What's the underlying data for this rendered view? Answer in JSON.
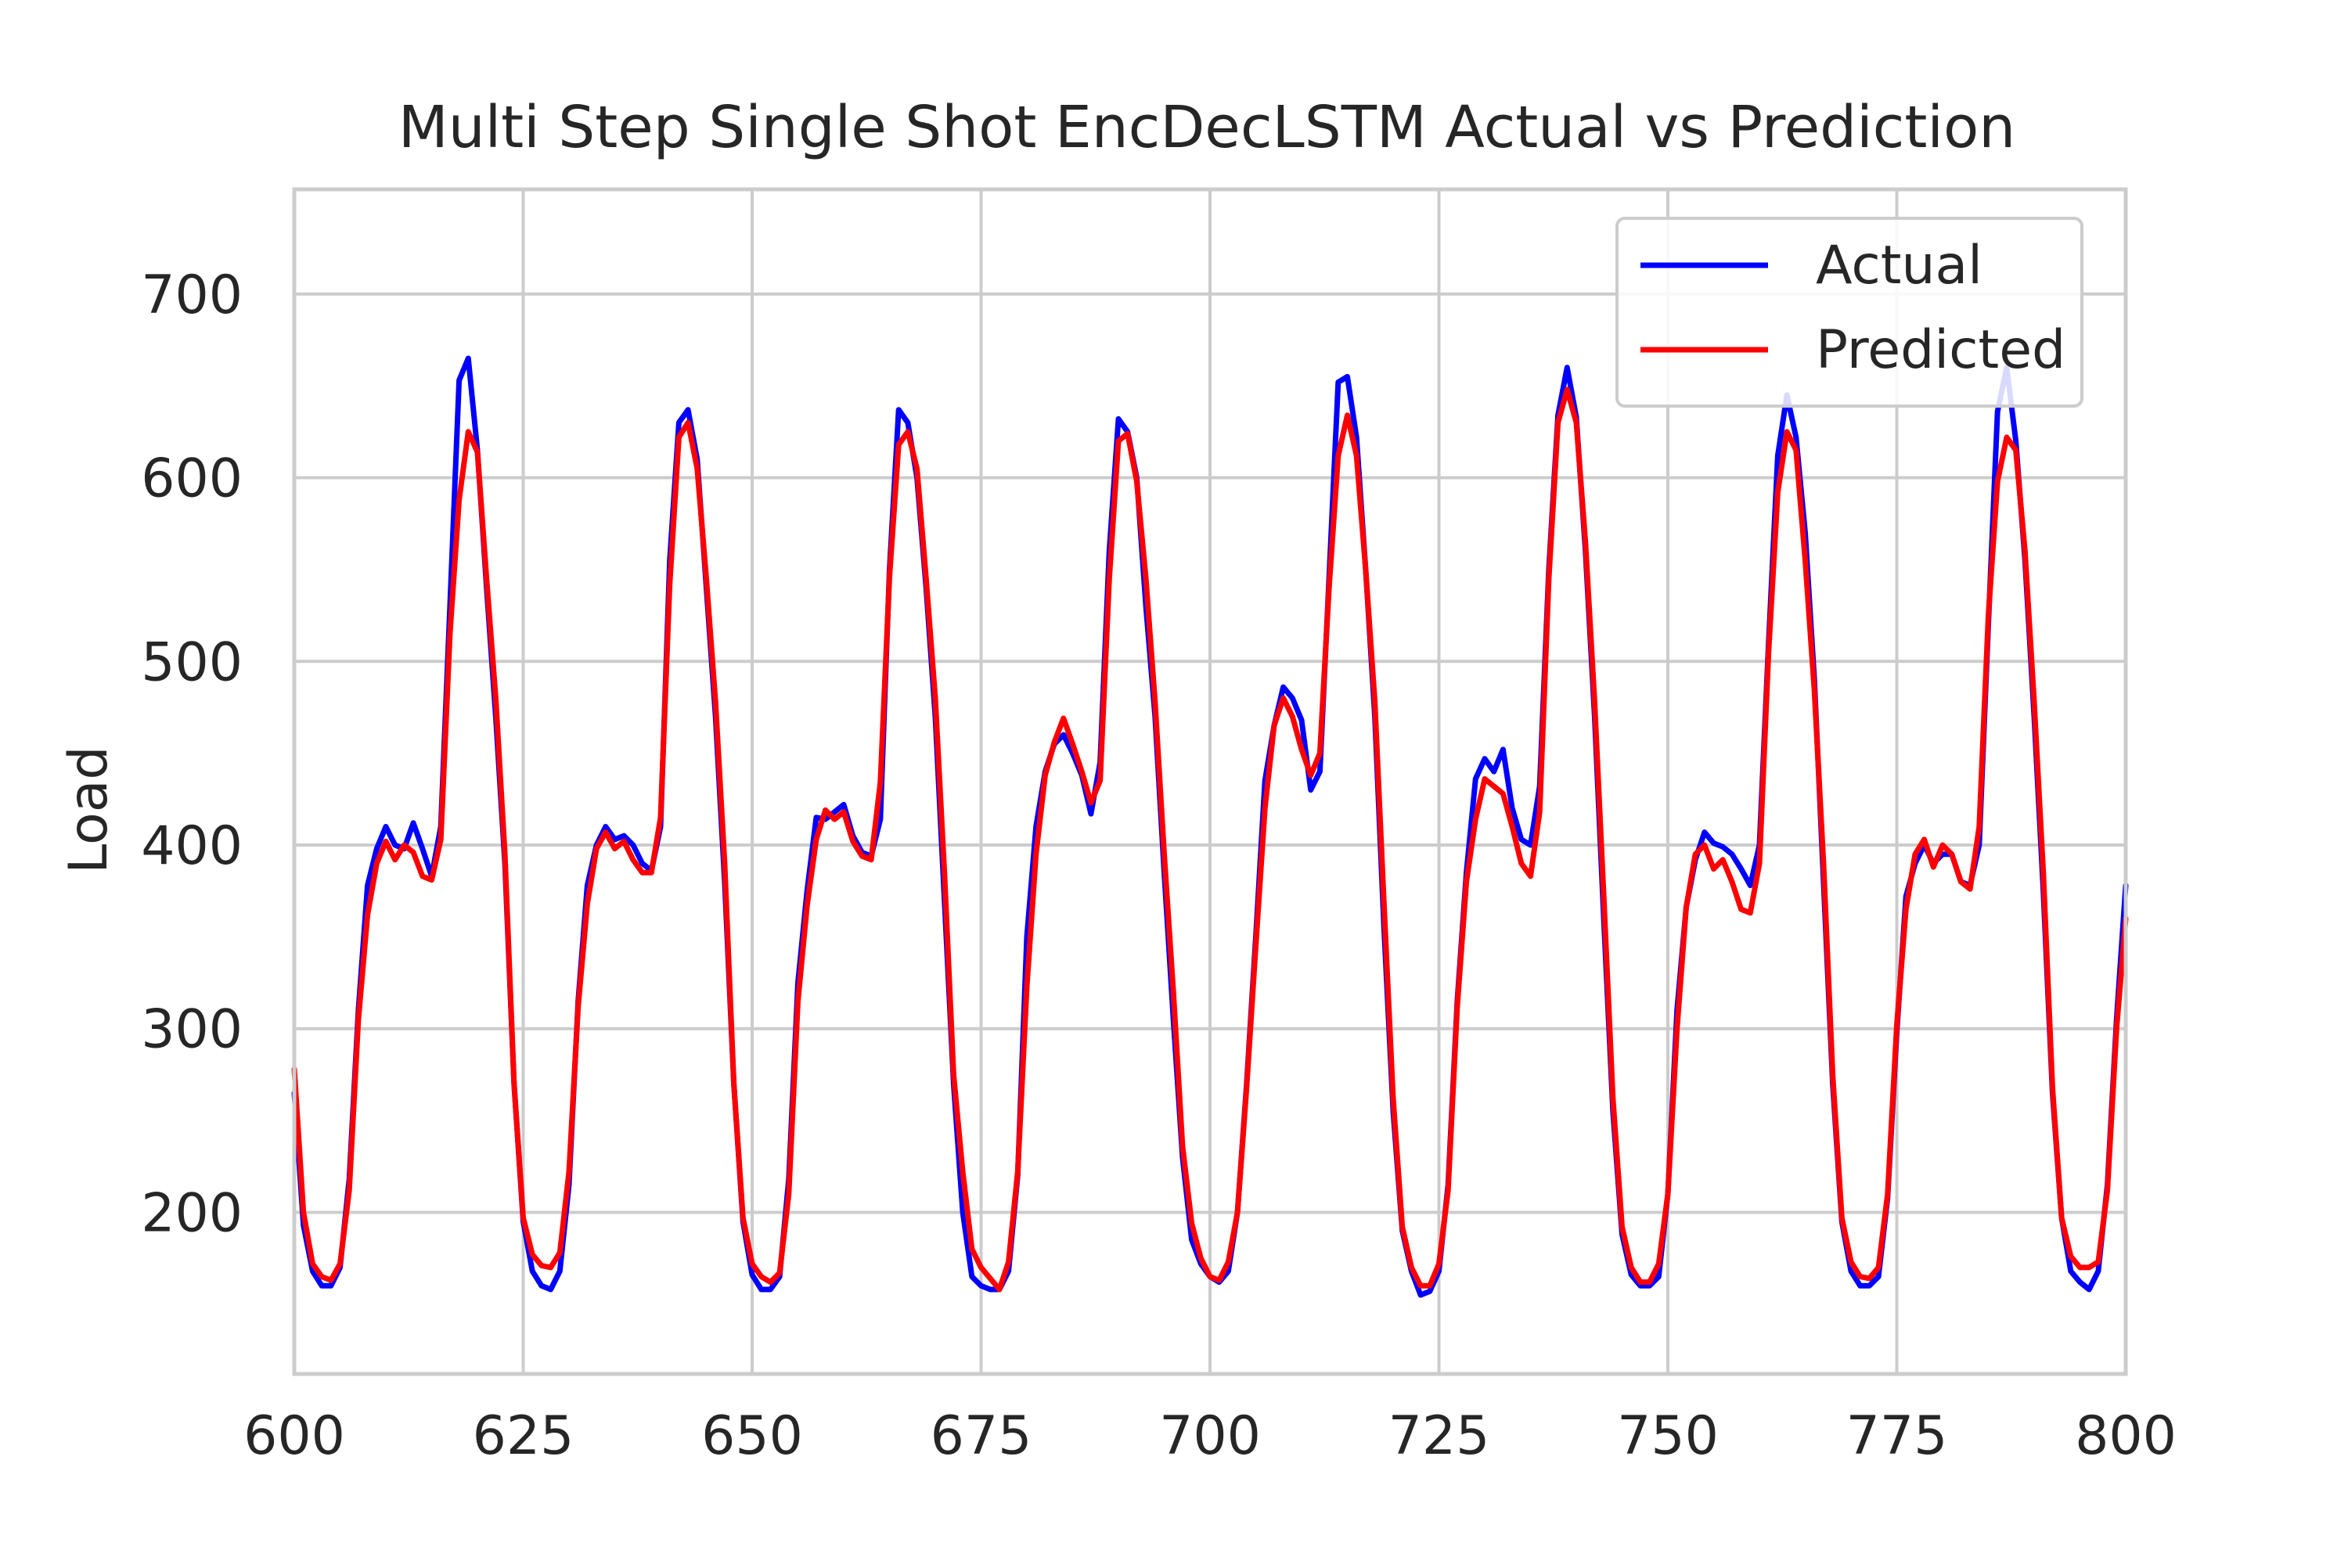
{
  "chart_data": {
    "type": "line",
    "title": "Multi Step Single Shot EncDecLSTM Actual vs Prediction",
    "xlabel": "",
    "ylabel": "Load",
    "xlim": [
      600,
      800
    ],
    "ylim": [
      112,
      757
    ],
    "x_ticks": [
      600,
      625,
      650,
      675,
      700,
      725,
      750,
      775,
      800
    ],
    "y_ticks": [
      200,
      300,
      400,
      500,
      600,
      700
    ],
    "grid": true,
    "legend_position": "top-right",
    "x_start": 600,
    "series": [
      {
        "name": "Actual",
        "color": "#0000ff",
        "values": [
          265,
          193,
          168,
          160,
          160,
          170,
          218,
          310,
          378,
          398,
          410,
          400,
          398,
          412,
          398,
          383,
          410,
          530,
          653,
          665,
          615,
          540,
          470,
          390,
          270,
          195,
          168,
          160,
          158,
          168,
          215,
          315,
          378,
          400,
          410,
          403,
          405,
          400,
          390,
          386,
          410,
          555,
          630,
          637,
          610,
          540,
          470,
          380,
          270,
          195,
          166,
          158,
          158,
          165,
          218,
          325,
          375,
          415,
          414,
          418,
          422,
          405,
          396,
          394,
          414,
          550,
          637,
          630,
          600,
          540,
          470,
          370,
          270,
          200,
          165,
          160,
          158,
          158,
          168,
          220,
          350,
          410,
          440,
          455,
          460,
          450,
          438,
          417,
          445,
          560,
          632,
          625,
          600,
          530,
          470,
          385,
          305,
          230,
          185,
          172,
          165,
          162,
          168,
          200,
          270,
          350,
          435,
          465,
          486,
          480,
          468,
          430,
          440,
          545,
          652,
          655,
          622,
          550,
          470,
          355,
          255,
          190,
          168,
          155,
          157,
          168,
          215,
          315,
          385,
          436,
          447,
          440,
          452,
          420,
          403,
          400,
          432,
          550,
          634,
          660,
          633,
          560,
          470,
          360,
          255,
          188,
          166,
          160,
          160,
          165,
          210,
          310,
          366,
          392,
          407,
          401,
          399,
          395,
          387,
          378,
          400,
          510,
          612,
          645,
          622,
          570,
          490,
          380,
          270,
          195,
          168,
          160,
          160,
          165,
          208,
          298,
          372,
          390,
          400,
          390,
          395,
          395,
          380,
          378,
          400,
          520,
          636,
          660,
          620,
          555,
          470,
          375,
          265,
          197,
          168,
          162,
          158,
          168,
          215,
          305,
          378
        ]
      },
      {
        "name": "Predicted",
        "color": "#ff0000",
        "values": [
          278,
          200,
          172,
          165,
          163,
          172,
          212,
          305,
          362,
          390,
          402,
          392,
          400,
          396,
          383,
          381,
          403,
          515,
          588,
          625,
          614,
          545,
          480,
          395,
          270,
          197,
          177,
          171,
          170,
          178,
          222,
          312,
          368,
          398,
          407,
          398,
          402,
          392,
          385,
          385,
          415,
          542,
          622,
          630,
          605,
          545,
          478,
          390,
          270,
          197,
          172,
          165,
          162,
          167,
          210,
          315,
          367,
          403,
          419,
          414,
          418,
          402,
          394,
          392,
          434,
          546,
          618,
          625,
          605,
          545,
          480,
          385,
          275,
          222,
          180,
          170,
          164,
          158,
          173,
          222,
          323,
          395,
          438,
          456,
          469,
          455,
          440,
          423,
          435,
          545,
          620,
          624,
          598,
          545,
          478,
          395,
          320,
          236,
          194,
          175,
          165,
          163,
          173,
          200,
          268,
          345,
          420,
          465,
          480,
          470,
          452,
          438,
          450,
          540,
          612,
          634,
          612,
          550,
          478,
          368,
          262,
          192,
          170,
          160,
          160,
          172,
          212,
          312,
          380,
          414,
          436,
          432,
          428,
          410,
          390,
          383,
          418,
          545,
          630,
          648,
          630,
          565,
          478,
          372,
          262,
          192,
          170,
          162,
          162,
          172,
          210,
          300,
          366,
          395,
          400,
          387,
          392,
          380,
          365,
          363,
          390,
          505,
          592,
          625,
          615,
          555,
          484,
          390,
          275,
          197,
          173,
          165,
          164,
          170,
          210,
          302,
          365,
          395,
          403,
          388,
          400,
          395,
          380,
          376,
          410,
          525,
          598,
          622,
          615,
          560,
          478,
          385,
          268,
          197,
          176,
          170,
          170,
          173,
          212,
          300,
          360
        ]
      }
    ]
  }
}
